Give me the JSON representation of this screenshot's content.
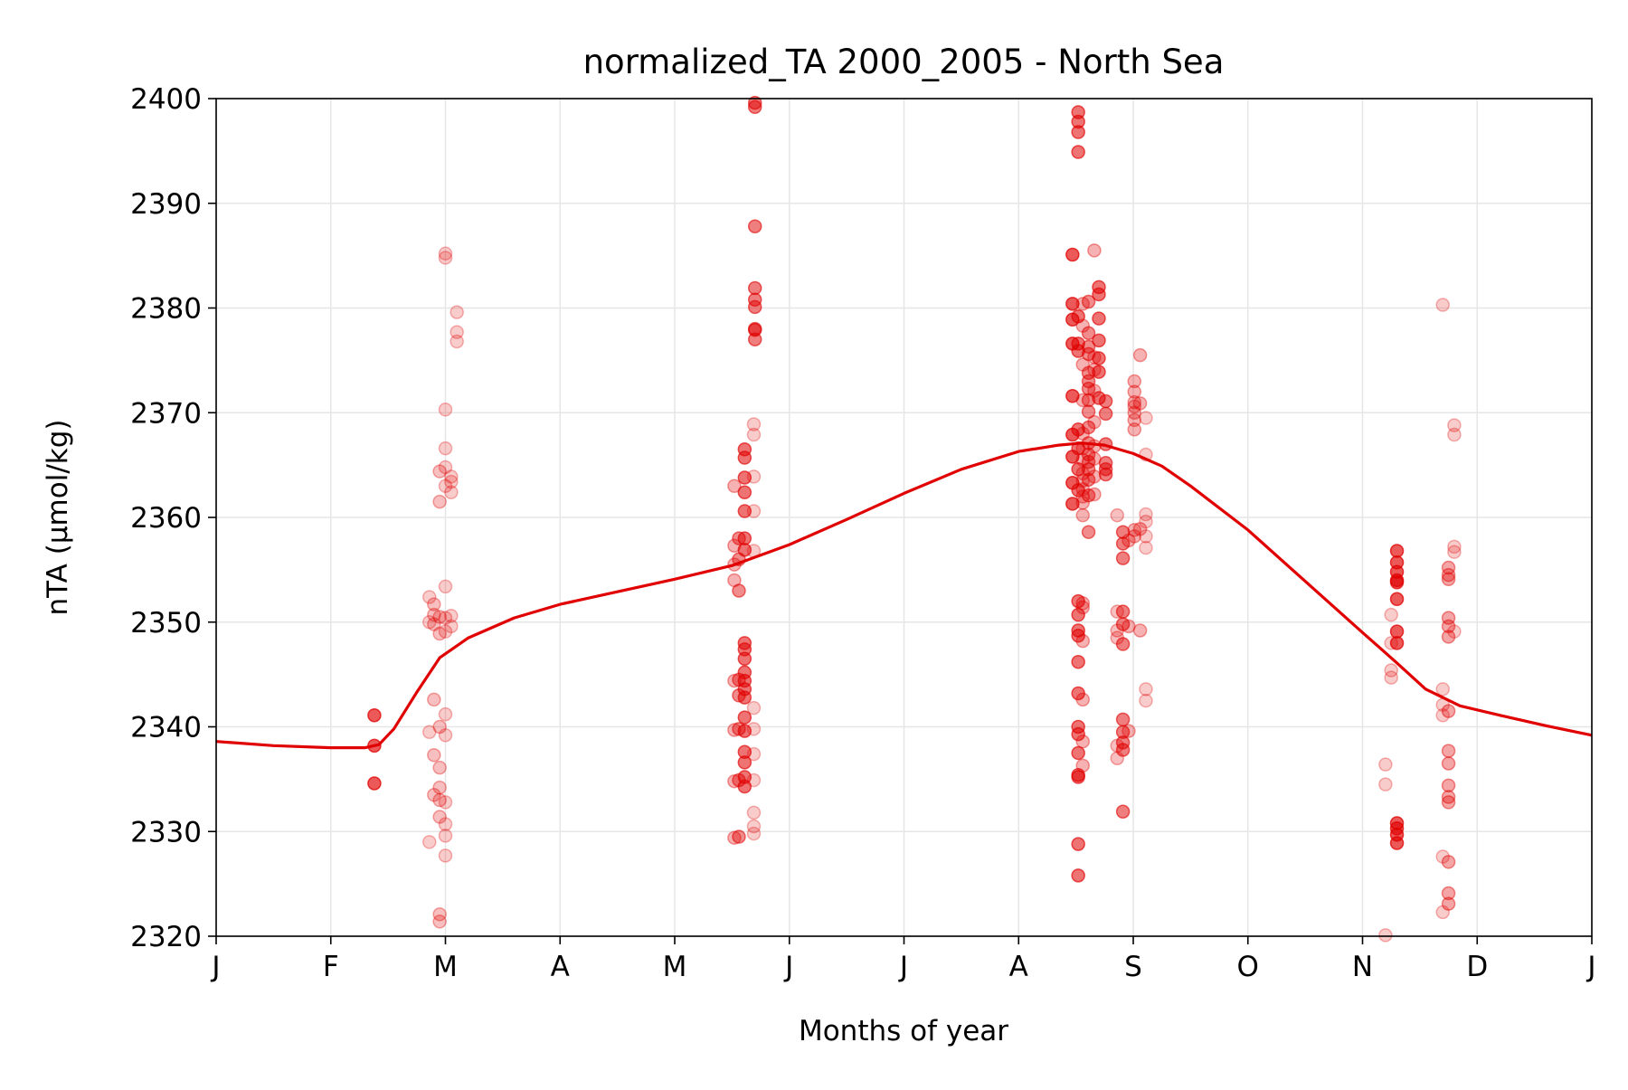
{
  "chart_data": {
    "type": "scatter",
    "title": "normalized_TA 2000_2005 - North Sea",
    "xlabel": "Months of year",
    "ylabel": "nTA (µmol/kg)",
    "xlim": [
      0,
      12
    ],
    "ylim": [
      2320,
      2400
    ],
    "grid": true,
    "x_ticks": [
      {
        "value": 0,
        "label": "J"
      },
      {
        "value": 1,
        "label": "F"
      },
      {
        "value": 2,
        "label": "M"
      },
      {
        "value": 3,
        "label": "A"
      },
      {
        "value": 4,
        "label": "M"
      },
      {
        "value": 5,
        "label": "J"
      },
      {
        "value": 6,
        "label": "J"
      },
      {
        "value": 7,
        "label": "A"
      },
      {
        "value": 8,
        "label": "S"
      },
      {
        "value": 9,
        "label": "O"
      },
      {
        "value": 10,
        "label": "N"
      },
      {
        "value": 11,
        "label": "D"
      },
      {
        "value": 12,
        "label": "J"
      }
    ],
    "y_ticks": [
      {
        "value": 2320,
        "label": "2320"
      },
      {
        "value": 2330,
        "label": "2330"
      },
      {
        "value": 2340,
        "label": "2340"
      },
      {
        "value": 2350,
        "label": "2350"
      },
      {
        "value": 2360,
        "label": "2360"
      },
      {
        "value": 2370,
        "label": "2370"
      },
      {
        "value": 2380,
        "label": "2380"
      },
      {
        "value": 2390,
        "label": "2390"
      },
      {
        "value": 2400,
        "label": "2400"
      }
    ],
    "colors": {
      "series": "#e00000",
      "axis": "#000000",
      "grid": "#e6e6e6"
    },
    "observations": [
      {
        "x": 1.38,
        "y": [
          2341.1,
          2338.2,
          2334.6
        ],
        "a": 0.65
      },
      {
        "x": 1.86,
        "y": [
          2339.5,
          2329.0,
          2350.0,
          2352.4
        ],
        "a": 0.2
      },
      {
        "x": 1.9,
        "y": [
          2342.6,
          2337.3,
          2333.5,
          2350.7,
          2351.7,
          2349.8
        ],
        "a": 0.25
      },
      {
        "x": 1.95,
        "y": [
          2340.0,
          2336.1,
          2334.2,
          2333.0,
          2331.4,
          2322.1,
          2321.4,
          2348.9,
          2350.5,
          2361.5,
          2364.4
        ],
        "a": 0.25
      },
      {
        "x": 2.0,
        "y": [
          2341.2,
          2339.2,
          2332.8,
          2330.7,
          2329.6,
          2327.7,
          2350.4,
          2349.1,
          2353.4,
          2363.0,
          2364.8,
          2370.3,
          2385.2,
          2384.8,
          2366.6
        ],
        "a": 0.2
      },
      {
        "x": 2.05,
        "y": [
          2350.6,
          2349.6,
          2362.4,
          2363.4,
          2363.9
        ],
        "a": 0.2
      },
      {
        "x": 2.1,
        "y": [
          2379.6,
          2377.7,
          2376.8
        ],
        "a": 0.2
      },
      {
        "x": 4.52,
        "y": [
          2363.0,
          2357.3,
          2355.5,
          2354.0,
          2344.4,
          2339.7,
          2334.8,
          2329.4
        ],
        "a": 0.3
      },
      {
        "x": 4.56,
        "y": [
          2358.0,
          2356.0,
          2353.0,
          2344.5,
          2343.0,
          2339.8,
          2334.9,
          2329.5
        ],
        "a": 0.45
      },
      {
        "x": 4.61,
        "y": [
          2366.5,
          2365.7,
          2363.8,
          2362.4,
          2360.6,
          2358.0,
          2356.9,
          2348.0,
          2347.4,
          2346.5,
          2345.2,
          2344.4,
          2343.6,
          2342.8,
          2340.9,
          2339.6,
          2337.6,
          2336.6,
          2335.2,
          2334.3
        ],
        "a": 0.55
      },
      {
        "x": 4.69,
        "y": [
          2341.8,
          2339.8,
          2337.4,
          2334.9,
          2331.8,
          2330.5,
          2329.8,
          2356.8,
          2360.6,
          2363.9,
          2368.9,
          2367.9
        ],
        "a": 0.2
      },
      {
        "x": 4.7,
        "y": [
          2399.6,
          2399.2,
          2387.8,
          2381.9,
          2380.8,
          2380.1,
          2378.0,
          2377.9,
          2377.0
        ],
        "a": 0.5
      },
      {
        "x": 7.47,
        "y": [
          2380.4,
          2378.9,
          2376.6,
          2371.6,
          2367.9,
          2365.8,
          2363.3,
          2361.3,
          2385.1
        ],
        "a": 0.65
      },
      {
        "x": 7.52,
        "y": [
          2398.7,
          2397.8,
          2396.8,
          2394.9,
          2379.2,
          2376.6,
          2375.9,
          2368.4,
          2366.6,
          2364.6,
          2362.6,
          2352.0,
          2350.7,
          2349.2,
          2348.7,
          2346.2,
          2343.2,
          2340.0,
          2339.3,
          2337.5,
          2335.4,
          2335.2,
          2328.8,
          2325.8
        ],
        "a": 0.55
      },
      {
        "x": 7.56,
        "y": [
          2380.4,
          2378.3,
          2374.6,
          2371.2,
          2368.0,
          2366.6,
          2365.5,
          2364.2,
          2363.5,
          2362.7,
          2362.0,
          2361.4,
          2360.2,
          2351.4,
          2348.2,
          2342.6,
          2338.6,
          2336.3,
          2351.8
        ],
        "a": 0.3
      },
      {
        "x": 7.61,
        "y": [
          2377.6,
          2375.6,
          2373.8,
          2373.0,
          2372.3,
          2371.2,
          2370.1,
          2368.6,
          2367.1,
          2366.0,
          2365.3,
          2364.6,
          2363.6,
          2362.1,
          2358.6,
          2376.3,
          2380.6
        ],
        "a": 0.45
      },
      {
        "x": 7.66,
        "y": [
          2375.3,
          2374.1,
          2372.1,
          2369.1,
          2366.8,
          2365.6,
          2363.9,
          2362.2,
          2385.5
        ],
        "a": 0.3
      },
      {
        "x": 7.7,
        "y": [
          2382.0,
          2381.3,
          2379.0,
          2376.9,
          2375.2,
          2373.9,
          2371.4
        ],
        "a": 0.55
      },
      {
        "x": 7.76,
        "y": [
          2369.9,
          2367.0,
          2365.2,
          2364.6,
          2364.1,
          2371.1
        ],
        "a": 0.5
      },
      {
        "x": 7.86,
        "y": [
          2351.0,
          2349.2,
          2348.5,
          2338.2,
          2337.0,
          2360.2
        ],
        "a": 0.25
      },
      {
        "x": 7.91,
        "y": [
          2351.0,
          2349.8,
          2347.9,
          2340.7,
          2339.5,
          2338.5,
          2337.8,
          2331.9,
          2358.6,
          2356.1,
          2357.5
        ],
        "a": 0.5
      },
      {
        "x": 7.96,
        "y": [
          2349.6,
          2339.6,
          2357.8
        ],
        "a": 0.3
      },
      {
        "x": 8.01,
        "y": [
          2373.0,
          2372.0,
          2371.0,
          2370.6,
          2370.0,
          2369.3,
          2368.4,
          2358.8,
          2358.2
        ],
        "a": 0.3
      },
      {
        "x": 8.06,
        "y": [
          2375.5,
          2370.9,
          2349.2,
          2358.9
        ],
        "a": 0.3
      },
      {
        "x": 8.11,
        "y": [
          2369.5,
          2366.0,
          2360.3,
          2359.6,
          2358.2,
          2357.1,
          2343.6,
          2342.5
        ],
        "a": 0.2
      },
      {
        "x": 10.2,
        "y": [
          2336.4,
          2334.5,
          2320.1
        ],
        "a": 0.2
      },
      {
        "x": 10.25,
        "y": [
          2350.7,
          2348.0,
          2345.4,
          2344.7
        ],
        "a": 0.2
      },
      {
        "x": 10.3,
        "y": [
          2356.8,
          2355.7,
          2354.8,
          2354.0,
          2353.8,
          2352.2,
          2349.1,
          2348.0,
          2330.8,
          2330.3,
          2329.7,
          2328.9
        ],
        "a": 0.65
      },
      {
        "x": 10.7,
        "y": [
          2380.3,
          2343.6,
          2342.1,
          2341.1,
          2327.6,
          2322.3
        ],
        "a": 0.2
      },
      {
        "x": 10.75,
        "y": [
          2355.2,
          2354.5,
          2354.1,
          2350.4,
          2349.6,
          2348.6,
          2341.5,
          2337.7,
          2336.5,
          2334.4,
          2333.3,
          2332.8,
          2327.1,
          2324.1,
          2323.1
        ],
        "a": 0.35
      },
      {
        "x": 10.8,
        "y": [
          2357.2,
          2356.7,
          2349.1,
          2368.8,
          2367.9
        ],
        "a": 0.2
      }
    ],
    "trend_line": {
      "x": [
        0,
        0.5,
        1.0,
        1.3,
        1.42,
        1.55,
        1.75,
        1.95,
        2.2,
        2.6,
        3.0,
        3.5,
        4.0,
        4.5,
        5.0,
        5.5,
        6.0,
        6.5,
        7.0,
        7.35,
        7.55,
        7.75,
        8.0,
        8.25,
        8.5,
        9.0,
        9.5,
        10.0,
        10.3,
        10.55,
        10.85,
        11.2,
        11.6,
        12.0
      ],
      "y": [
        2338.6,
        2338.2,
        2338.0,
        2338.0,
        2338.3,
        2339.8,
        2343.3,
        2346.6,
        2348.5,
        2350.4,
        2351.7,
        2352.9,
        2354.1,
        2355.4,
        2357.4,
        2359.8,
        2362.3,
        2364.6,
        2366.3,
        2366.9,
        2367.1,
        2366.9,
        2366.1,
        2364.9,
        2363.0,
        2358.8,
        2353.9,
        2349.0,
        2346.1,
        2343.6,
        2342.0,
        2341.1,
        2340.1,
        2339.2
      ]
    }
  }
}
